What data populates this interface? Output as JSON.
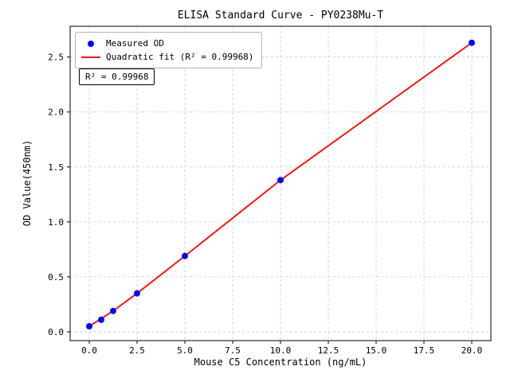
{
  "chart_data": {
    "type": "scatter",
    "title": "ELISA Standard Curve - PY0238Mu-T",
    "xlabel": "Mouse C5 Concentration (ng/mL)",
    "ylabel": "OD Value(450nm)",
    "annotation": "R² = 0.99968",
    "r_squared": 0.99968,
    "grid": true,
    "legend_position": "upper left",
    "xlim": [
      -1,
      21
    ],
    "ylim": [
      -0.08,
      2.78
    ],
    "xticks": {
      "values": [
        0,
        2.5,
        5,
        7.5,
        10,
        12.5,
        15,
        17.5,
        20
      ],
      "labels": [
        "0.0",
        "2.5",
        "5.0",
        "7.5",
        "10.0",
        "12.5",
        "15.0",
        "17.5",
        "20.0"
      ]
    },
    "yticks": {
      "values": [
        0,
        0.5,
        1,
        1.5,
        2,
        2.5
      ],
      "labels": [
        "0.0",
        "0.5",
        "1.0",
        "1.5",
        "2.0",
        "2.5"
      ]
    },
    "series": [
      {
        "name": "Measured OD",
        "type": "scatter",
        "color": "#0000ff",
        "x": [
          0,
          0.625,
          1.25,
          2.5,
          5,
          10,
          20
        ],
        "y": [
          0.05,
          0.11,
          0.19,
          0.35,
          0.69,
          1.38,
          2.63
        ]
      },
      {
        "name": "Quadratic fit (R² = 0.99968)",
        "type": "line",
        "color": "#ff0000",
        "x": [
          0,
          0.625,
          1.25,
          2.5,
          5,
          10,
          20
        ],
        "y": [
          0.05,
          0.12,
          0.19,
          0.35,
          0.69,
          1.38,
          2.63
        ]
      }
    ]
  }
}
